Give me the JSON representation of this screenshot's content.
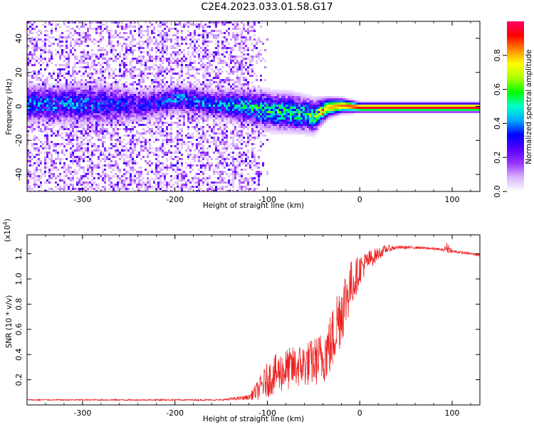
{
  "title": "C2E4.2023.033.01.58.G17",
  "chart_data": [
    {
      "type": "heatmap",
      "xlabel": "Height of straight line (km)",
      "ylabel": "Frequency (Hz)",
      "xlim": [
        -360,
        130
      ],
      "ylim": [
        -50,
        50
      ],
      "xticks": [
        -300,
        -200,
        -100,
        0,
        100
      ],
      "yticks": [
        -40,
        -20,
        0,
        20,
        40
      ],
      "colorbar": {
        "label": "Normalized spectral amplitude",
        "range": [
          0,
          1
        ],
        "ticks": [
          0.0,
          0.2,
          0.4,
          0.6,
          0.8
        ],
        "tick_labels": [
          "0.0",
          "0.2",
          "0.4",
          "0.6",
          "0.8"
        ],
        "colormap": [
          "#ffffff",
          "#d9b3ff",
          "#9933ff",
          "#5500ff",
          "#0000ff",
          "#00aaff",
          "#00ffcc",
          "#00ff00",
          "#aaff00",
          "#ffff00",
          "#ff8800",
          "#ff0000",
          "#ff0066"
        ]
      },
      "signal_ridge": [
        {
          "x": -310,
          "center": 2,
          "width": 8,
          "amplitude": 0.35
        },
        {
          "x": -280,
          "center": 2,
          "width": 9,
          "amplitude": 0.3
        },
        {
          "x": -240,
          "center": 1,
          "width": 7,
          "amplitude": 0.25
        },
        {
          "x": -195,
          "center": 5,
          "width": 6,
          "amplitude": 0.35
        },
        {
          "x": -160,
          "center": 2,
          "width": 6,
          "amplitude": 0.35
        },
        {
          "x": -130,
          "center": 1,
          "width": 7,
          "amplitude": 0.4
        },
        {
          "x": -100,
          "center": -2,
          "width": 8,
          "amplitude": 0.45
        },
        {
          "x": -75,
          "center": -3,
          "width": 8,
          "amplitude": 0.45
        },
        {
          "x": -50,
          "center": -5,
          "width": 7,
          "amplitude": 0.5
        },
        {
          "x": -35,
          "center": 0,
          "width": 4,
          "amplitude": 0.8
        },
        {
          "x": -20,
          "center": 1,
          "width": 3,
          "amplitude": 0.85
        },
        {
          "x": 0,
          "center": 0,
          "width": 2,
          "amplitude": 0.95
        },
        {
          "x": 130,
          "center": 0,
          "width": 2,
          "amplitude": 0.95
        }
      ],
      "noise_extent_x": [
        -360,
        -120
      ]
    },
    {
      "type": "line",
      "xlabel": "Height of straight line (km)",
      "ylabel": "SNR (10 * v/v)",
      "y_multiplier": "(x10",
      "y_multiplier_exp": "4",
      "xlim": [
        -360,
        130
      ],
      "ylim": [
        0,
        13500
      ],
      "xticks": [
        -300,
        -200,
        -100,
        0,
        100
      ],
      "yticks": [
        2000,
        4000,
        6000,
        8000,
        10000,
        12000
      ],
      "ytick_labels": [
        "0.2",
        "0.4",
        "0.6",
        "0.8",
        "1.0",
        "1.2"
      ],
      "series": [
        {
          "color": "#ee2222",
          "x": [
            -360,
            -300,
            -200,
            -150,
            -120,
            -110,
            -100,
            -90,
            -80,
            -70,
            -60,
            -50,
            -40,
            -30,
            -25,
            -20,
            -15,
            -10,
            -5,
            0,
            10,
            20,
            30,
            40,
            60,
            80,
            90,
            95,
            100,
            120,
            130
          ],
          "y": [
            400,
            400,
            400,
            400,
            600,
            1200,
            2000,
            2500,
            2800,
            3000,
            3200,
            3400,
            3800,
            5000,
            6500,
            7500,
            8500,
            9500,
            10000,
            10800,
            11500,
            12000,
            12400,
            12500,
            12500,
            12400,
            12300,
            12500,
            12200,
            12000,
            11900
          ],
          "noise": [
            50,
            50,
            60,
            60,
            200,
            800,
            1400,
            1600,
            1700,
            1700,
            1800,
            1900,
            2200,
            2600,
            2800,
            2800,
            2500,
            2000,
            1600,
            1200,
            800,
            500,
            300,
            150,
            100,
            100,
            100,
            500,
            100,
            100,
            100
          ]
        }
      ]
    }
  ]
}
